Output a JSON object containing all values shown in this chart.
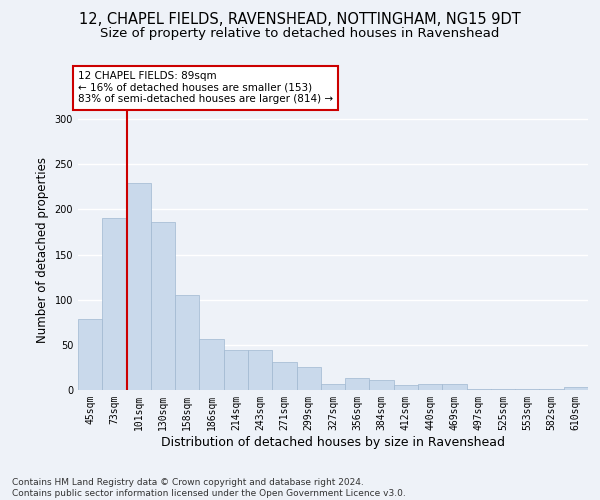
{
  "title1": "12, CHAPEL FIELDS, RAVENSHEAD, NOTTINGHAM, NG15 9DT",
  "title2": "Size of property relative to detached houses in Ravenshead",
  "xlabel": "Distribution of detached houses by size in Ravenshead",
  "ylabel": "Number of detached properties",
  "categories": [
    "45sqm",
    "73sqm",
    "101sqm",
    "130sqm",
    "158sqm",
    "186sqm",
    "214sqm",
    "243sqm",
    "271sqm",
    "299sqm",
    "327sqm",
    "356sqm",
    "384sqm",
    "412sqm",
    "440sqm",
    "469sqm",
    "497sqm",
    "525sqm",
    "553sqm",
    "582sqm",
    "610sqm"
  ],
  "values": [
    79,
    190,
    229,
    186,
    105,
    57,
    44,
    44,
    31,
    25,
    7,
    13,
    11,
    5,
    7,
    7,
    1,
    1,
    1,
    1,
    3
  ],
  "bar_color": "#c9d9eb",
  "bar_edge_color": "#a0b8d0",
  "vline_x": 1.5,
  "vline_color": "#cc0000",
  "annotation_text": "12 CHAPEL FIELDS: 89sqm\n← 16% of detached houses are smaller (153)\n83% of semi-detached houses are larger (814) →",
  "annotation_box_color": "#ffffff",
  "annotation_box_edge": "#cc0000",
  "ylim": [
    0,
    310
  ],
  "yticks": [
    0,
    50,
    100,
    150,
    200,
    250,
    300
  ],
  "footnote": "Contains HM Land Registry data © Crown copyright and database right 2024.\nContains public sector information licensed under the Open Government Licence v3.0.",
  "bg_color": "#eef2f8",
  "grid_color": "#ffffff",
  "title1_fontsize": 10.5,
  "title2_fontsize": 9.5,
  "xlabel_fontsize": 9,
  "ylabel_fontsize": 8.5,
  "tick_fontsize": 7,
  "annotation_fontsize": 7.5,
  "footnote_fontsize": 6.5
}
